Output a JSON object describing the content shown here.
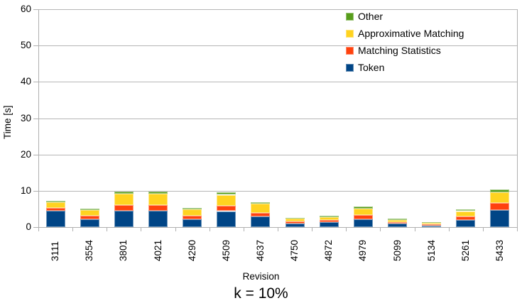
{
  "chart_data": {
    "type": "bar",
    "stacked": true,
    "title": "k = 10%",
    "xlabel": "Revision",
    "ylabel": "Time [s]",
    "ylim": [
      0,
      60
    ],
    "yticks": [
      0,
      10,
      20,
      30,
      40,
      50,
      60
    ],
    "grid": true,
    "legend_position": "top-right-inside",
    "legend_order": [
      "Other",
      "Approximative Matching",
      "Matching Statistics",
      "Token"
    ],
    "categories": [
      "3111",
      "3554",
      "3801",
      "4021",
      "4290",
      "4509",
      "4637",
      "4750",
      "4872",
      "4979",
      "5099",
      "5134",
      "5261",
      "5433"
    ],
    "series": [
      {
        "name": "Token",
        "color": "#004586",
        "values": [
          4.5,
          2.1,
          4.5,
          4.5,
          2.2,
          4.4,
          3.0,
          1.0,
          1.3,
          2.2,
          0.9,
          0.45,
          1.9,
          4.7
        ]
      },
      {
        "name": "Matching Statistics",
        "color": "#FF420E",
        "values": [
          0.7,
          1.0,
          1.5,
          1.5,
          1.0,
          1.5,
          1.0,
          0.5,
          0.7,
          1.1,
          0.5,
          0.25,
          1.1,
          2.0
        ]
      },
      {
        "name": "Approximative Matching",
        "color": "#FFD320",
        "values": [
          1.6,
          1.6,
          3.1,
          3.1,
          1.6,
          3.0,
          2.4,
          0.8,
          0.7,
          1.8,
          0.6,
          0.4,
          1.4,
          2.9
        ]
      },
      {
        "name": "Other",
        "color": "#579D1C",
        "values": [
          0.4,
          0.4,
          0.6,
          0.6,
          0.4,
          0.6,
          0.5,
          0.3,
          0.5,
          0.5,
          0.4,
          0.3,
          0.5,
          0.7
        ]
      }
    ]
  },
  "colors": {
    "grid": "#b6b6b6",
    "axis": "#b0b0b0",
    "text": "#000000",
    "background": "#ffffff"
  }
}
